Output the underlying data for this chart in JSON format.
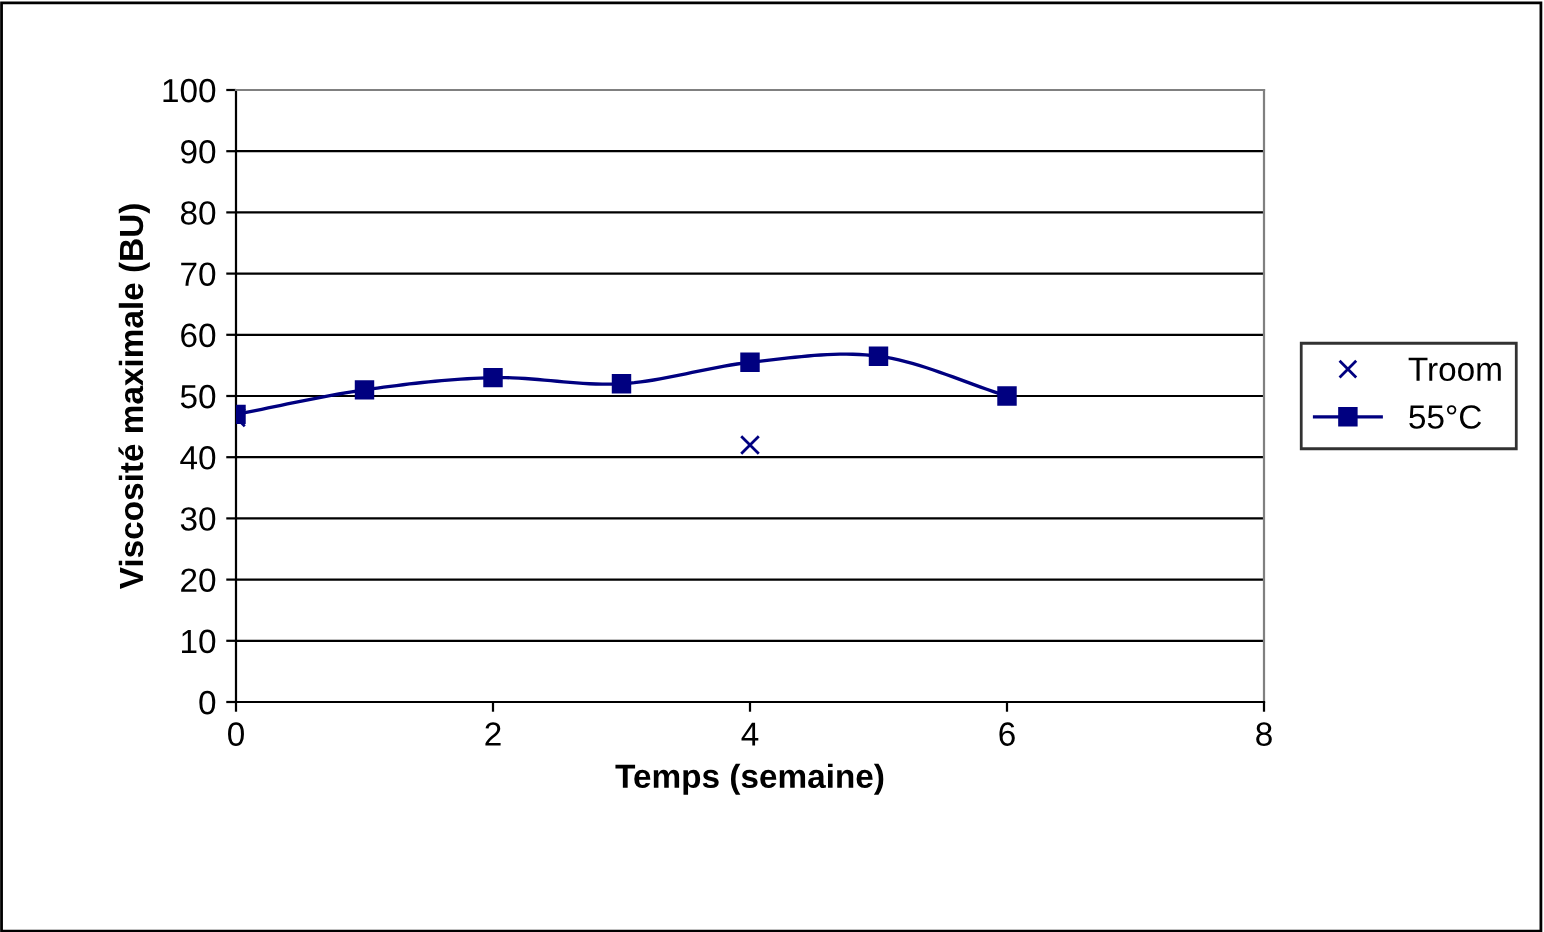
{
  "chart_data": {
    "type": "line",
    "xlabel": "Temps (semaine)",
    "ylabel": "Viscosité maximale (BU)",
    "xlim": [
      0,
      8
    ],
    "xticks": [
      0,
      2,
      4,
      6,
      8
    ],
    "ylim": [
      0,
      100
    ],
    "yticks": [
      0,
      10,
      20,
      30,
      40,
      50,
      60,
      70,
      80,
      90,
      100
    ],
    "grid": "y",
    "legend": "right",
    "series": [
      {
        "name": "Troom",
        "type": "scatter",
        "marker": "cross",
        "color": "#000080",
        "x": [
          0,
          4
        ],
        "values": [
          46.5,
          42
        ]
      },
      {
        "name": "55°C",
        "marker": "square",
        "color": "#000080",
        "x": [
          0,
          1,
          2,
          3,
          4,
          5,
          6
        ],
        "values": [
          47,
          51,
          53,
          52,
          55.5,
          56.5,
          50
        ]
      }
    ]
  }
}
